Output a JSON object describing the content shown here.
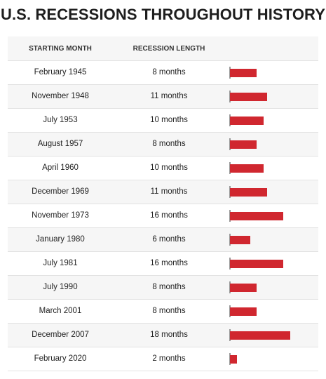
{
  "title": "U.S. RECESSIONS THROUGHOUT HISTORY",
  "columns": {
    "start": "STARTING MONTH",
    "length": "RECESSION LENGTH"
  },
  "rows": [
    {
      "start": "February 1945",
      "length": "8 months"
    },
    {
      "start": "November 1948",
      "length": "11 months"
    },
    {
      "start": "July 1953",
      "length": "10 months"
    },
    {
      "start": "August 1957",
      "length": "8 months"
    },
    {
      "start": "April 1960",
      "length": "10 months"
    },
    {
      "start": "December 1969",
      "length": "11 months"
    },
    {
      "start": "November 1973",
      "length": "16 months"
    },
    {
      "start": "January 1980",
      "length": "6 months"
    },
    {
      "start": "July 1981",
      "length": "16 months"
    },
    {
      "start": "July 1990",
      "length": "8 months"
    },
    {
      "start": "March 2001",
      "length": "8 months"
    },
    {
      "start": "December 2007",
      "length": "18 months"
    },
    {
      "start": "February 2020",
      "length": "2 months"
    }
  ],
  "colors": {
    "bar": "#d0272f",
    "row_alt": "#f6f6f6"
  },
  "chart_data": {
    "type": "bar",
    "categories": [
      "February 1945",
      "November 1948",
      "July 1953",
      "August 1957",
      "April 1960",
      "December 1969",
      "November 1973",
      "January 1980",
      "July 1981",
      "July 1990",
      "March 2001",
      "December 2007",
      "February 2020"
    ],
    "values": [
      8,
      11,
      10,
      8,
      10,
      11,
      16,
      6,
      16,
      8,
      8,
      18,
      2
    ],
    "title": "U.S. RECESSIONS THROUGHOUT HISTORY",
    "xlabel": "RECESSION LENGTH",
    "ylabel": "STARTING MONTH",
    "orientation": "horizontal",
    "xlim": [
      0,
      18
    ],
    "grid": false
  }
}
